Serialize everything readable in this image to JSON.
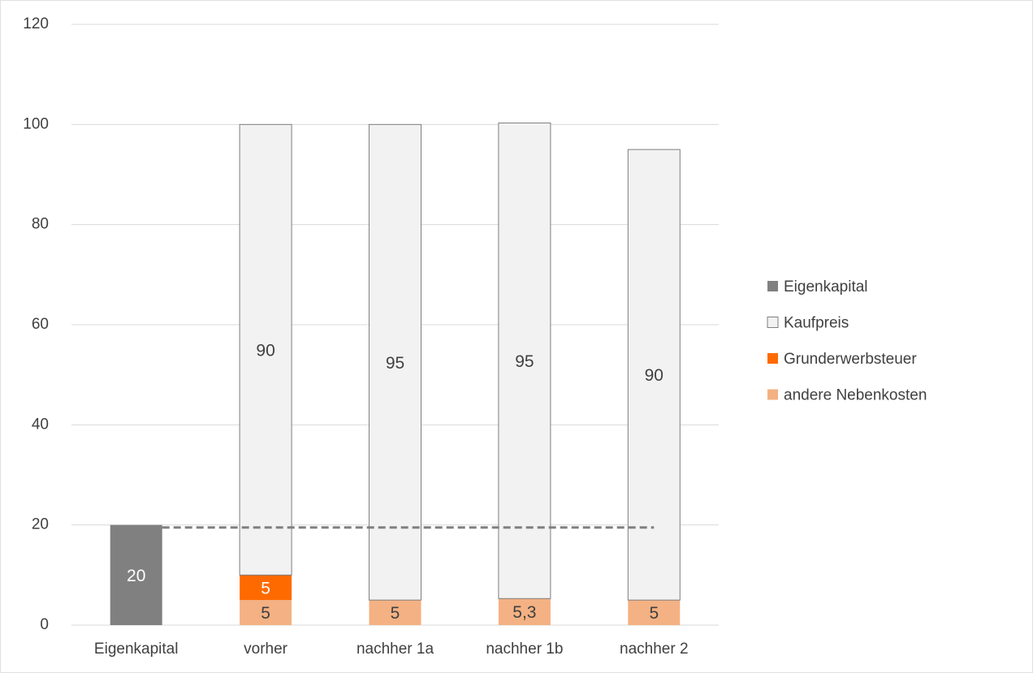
{
  "chart_data": {
    "type": "stacked_bar",
    "categories": [
      "Eigenkapital",
      "vorher",
      "nachher 1a",
      "nachher 1b",
      "nachher 2"
    ],
    "series": [
      {
        "name": "Eigenkapital",
        "color": "#808080",
        "values": [
          20,
          null,
          null,
          null,
          null
        ]
      },
      {
        "name": "Kaufpreis",
        "color": "#f2f2f2",
        "values": [
          null,
          90,
          95,
          95,
          90
        ]
      },
      {
        "name": "Grunderwerbsteuer",
        "color": "#ff6a00",
        "values": [
          null,
          5,
          null,
          null,
          null
        ]
      },
      {
        "name": "andere Nebenkosten",
        "color": "#f4b183",
        "values": [
          null,
          5,
          5,
          5.3,
          5
        ],
        "value_labels": [
          null,
          "5",
          "5",
          "5,3",
          "5"
        ]
      }
    ],
    "ylim": [
      0,
      120
    ],
    "yticks": [
      0,
      20,
      40,
      60,
      80,
      100,
      120
    ],
    "grid": true,
    "legend": "right",
    "reference_line": {
      "value": 19.5,
      "color": "#808080",
      "dashed": true
    }
  }
}
